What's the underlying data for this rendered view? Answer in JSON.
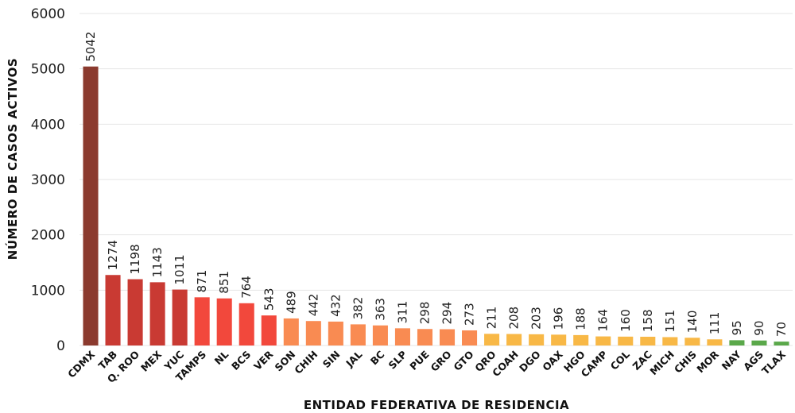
{
  "chart_data": {
    "type": "bar",
    "title": "",
    "xlabel": "ENTIDAD FEDERATIVA DE RESIDENCIA",
    "ylabel": "NÚMERO DE CASOS ACTIVOS",
    "ylim": [
      0,
      6000
    ],
    "yticks": [
      "0",
      "1000",
      "2000",
      "3000",
      "4000",
      "5000",
      "6000"
    ],
    "grid": true,
    "categories": [
      "CDMX",
      "TAB",
      "Q. ROO",
      "MEX",
      "YUC",
      "TAMPS",
      "NL",
      "BCS",
      "VER",
      "SON",
      "CHIH",
      "SIN",
      "JAL",
      "BC",
      "SLP",
      "PUE",
      "GRO",
      "GTO",
      "QRO",
      "COAH",
      "DGO",
      "OAX",
      "HGO",
      "CAMP",
      "COL",
      "ZAC",
      "MICH",
      "CHIS",
      "MOR",
      "NAY",
      "AGS",
      "TLAX"
    ],
    "values": [
      5042,
      1274,
      1198,
      1143,
      1011,
      871,
      851,
      764,
      543,
      489,
      442,
      432,
      382,
      363,
      311,
      298,
      294,
      273,
      211,
      208,
      203,
      196,
      188,
      164,
      160,
      158,
      151,
      140,
      111,
      95,
      90,
      70
    ],
    "colors": [
      "#8b3a2e",
      "#c93a33",
      "#c93a33",
      "#c93a33",
      "#c93a33",
      "#f2483c",
      "#f2483c",
      "#f2483c",
      "#f2483c",
      "#f98b52",
      "#f98b52",
      "#f98b52",
      "#f98b52",
      "#f98b52",
      "#f98b52",
      "#f98b52",
      "#f98b52",
      "#f98b52",
      "#f8b846",
      "#f8b846",
      "#f8b846",
      "#f8b846",
      "#f8b846",
      "#f8b846",
      "#f8b846",
      "#f8b846",
      "#f8b846",
      "#f8b846",
      "#f8b846",
      "#5aa84a",
      "#5aa84a",
      "#5aa84a"
    ]
  }
}
